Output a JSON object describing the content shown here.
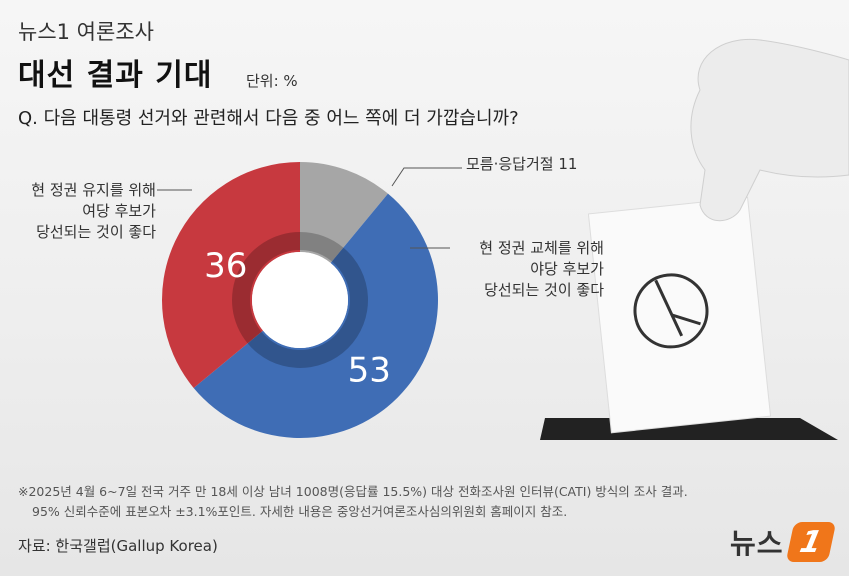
{
  "header": {
    "brand": "뉴스1 여론조사",
    "title": "대선 결과 기대",
    "unit": "단위: %",
    "question": "Q. 다음 대통령 선거와 관련해서 다음 중 어느 쪽에 더 가깝습니까?"
  },
  "chart_data": {
    "type": "pie",
    "title": "대선 결과 기대",
    "unit": "%",
    "slices": [
      {
        "label": "모름·응답거절",
        "value": 11,
        "color": "#a6a6a6"
      },
      {
        "label": "현 정권 교체를 위해 야당 후보가 당선되는 것이 좋다",
        "value": 53,
        "color": "#3f6db5"
      },
      {
        "label": "현 정권 유지를 위해 여당 후보가 당선되는 것이 좋다",
        "value": 36,
        "color": "#c7393f"
      }
    ]
  },
  "labels": {
    "left_lines": [
      "현 정권 유지를 위해",
      "여당 후보가",
      "당선되는 것이 좋다"
    ],
    "dk": "모름·응답거절 11",
    "right_lines": [
      "현 정권 교체를 위해",
      "야당 후보가",
      "당선되는 것이 좋다"
    ]
  },
  "footnote": {
    "line1": "※2025년 4월 6~7일 전국 거주 만 18세 이상 남녀 1008명(응답률 15.5%) 대상 전화조사원 인터뷰(CATI) 방식의 조사 결과.",
    "line2": "95% 신뢰수준에 표본오차 ±3.1%포인트. 자세한 내용은 중앙선거여론조사심의위원회 홈페이지 참조."
  },
  "source": "자료: 한국갤럽(Gallup Korea)",
  "logo": {
    "text": "뉴스",
    "badge": "1",
    "color": "#f0761a"
  }
}
